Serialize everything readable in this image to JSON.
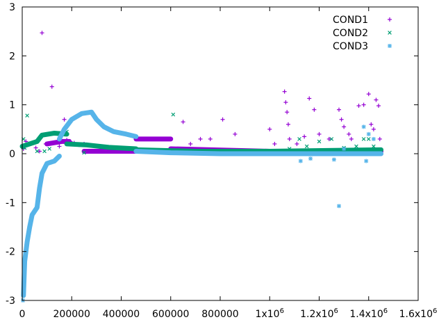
{
  "chart_data": {
    "type": "scatter",
    "title": "",
    "xlabel": "",
    "ylabel": "",
    "xlim": [
      0,
      1600000
    ],
    "ylim": [
      -3,
      3
    ],
    "x_ticks": [
      {
        "value": 0,
        "label": "0"
      },
      {
        "value": 200000,
        "label": "200000"
      },
      {
        "value": 400000,
        "label": "400000"
      },
      {
        "value": 600000,
        "label": "600000"
      },
      {
        "value": 800000,
        "label": "800000"
      },
      {
        "value": 1000000,
        "label": "1x10",
        "exp": "6"
      },
      {
        "value": 1200000,
        "label": "1.2x10",
        "exp": "6"
      },
      {
        "value": 1400000,
        "label": "1.4x10",
        "exp": "6"
      },
      {
        "value": 1600000,
        "label": "1.6x10",
        "exp": "6"
      }
    ],
    "y_ticks": [
      {
        "value": -3,
        "label": "-3"
      },
      {
        "value": -2,
        "label": "-2"
      },
      {
        "value": -1,
        "label": "-1"
      },
      {
        "value": 0,
        "label": "0"
      },
      {
        "value": 1,
        "label": "1"
      },
      {
        "value": 2,
        "label": "2"
      },
      {
        "value": 3,
        "label": "3"
      }
    ],
    "grid": false,
    "legend_position": "top-right",
    "series": [
      {
        "name": "COND1",
        "marker": "plus",
        "color": "#9400d3",
        "points": [
          [
            5000,
            0.1
          ],
          [
            15000,
            0.25
          ],
          [
            30000,
            0.2
          ],
          [
            55000,
            0.12
          ],
          [
            70000,
            0.05
          ],
          [
            80000,
            2.47
          ],
          [
            95000,
            0.2
          ],
          [
            120000,
            1.37
          ],
          [
            150000,
            0.15
          ],
          [
            170000,
            0.7
          ],
          [
            180000,
            0.28
          ],
          [
            195000,
            0.25
          ],
          [
            210000,
            0.22
          ],
          [
            230000,
            0.18
          ],
          [
            250000,
            0.2
          ],
          [
            650000,
            0.65
          ],
          [
            680000,
            0.2
          ],
          [
            720000,
            0.3
          ],
          [
            760000,
            0.3
          ],
          [
            810000,
            0.7
          ],
          [
            860000,
            0.4
          ],
          [
            1000000,
            0.5
          ],
          [
            1020000,
            0.2
          ],
          [
            1060000,
            1.27
          ],
          [
            1065000,
            1.05
          ],
          [
            1070000,
            0.85
          ],
          [
            1075000,
            0.6
          ],
          [
            1080000,
            0.3
          ],
          [
            1110000,
            0.2
          ],
          [
            1140000,
            0.35
          ],
          [
            1160000,
            1.13
          ],
          [
            1180000,
            0.9
          ],
          [
            1200000,
            0.4
          ],
          [
            1240000,
            0.3
          ],
          [
            1280000,
            0.9
          ],
          [
            1290000,
            0.7
          ],
          [
            1300000,
            0.55
          ],
          [
            1320000,
            0.4
          ],
          [
            1330000,
            0.3
          ],
          [
            1360000,
            0.98
          ],
          [
            1380000,
            1.0
          ],
          [
            1400000,
            1.22
          ],
          [
            1410000,
            0.6
          ],
          [
            1420000,
            0.5
          ],
          [
            1430000,
            1.1
          ],
          [
            1440000,
            0.98
          ],
          [
            1445000,
            0.3
          ]
        ],
        "segments": [
          [
            [
              100000,
              0.2
            ],
            [
              160000,
              0.25
            ],
            [
              190000,
              0.25
            ]
          ],
          [
            [
              250000,
              0.05
            ],
            [
              460000,
              0.05
            ]
          ],
          [
            [
              460000,
              0.3
            ],
            [
              600000,
              0.3
            ]
          ],
          [
            [
              600000,
              0.1
            ],
            [
              1000000,
              0.05
            ],
            [
              1450000,
              0.05
            ]
          ]
        ]
      },
      {
        "name": "COND2",
        "marker": "cross",
        "color": "#009e73",
        "points": [
          [
            5000,
            0.3
          ],
          [
            10000,
            0.12
          ],
          [
            20000,
            0.78
          ],
          [
            60000,
            0.05
          ],
          [
            90000,
            0.05
          ],
          [
            110000,
            0.1
          ],
          [
            180000,
            0.45
          ],
          [
            250000,
            0.02
          ],
          [
            610000,
            0.8
          ],
          [
            1080000,
            0.1
          ],
          [
            1120000,
            0.3
          ],
          [
            1150000,
            0.15
          ],
          [
            1200000,
            0.25
          ],
          [
            1250000,
            0.3
          ],
          [
            1300000,
            0.12
          ],
          [
            1350000,
            0.15
          ],
          [
            1380000,
            0.3
          ],
          [
            1400000,
            0.3
          ],
          [
            1420000,
            0.15
          ]
        ],
        "segments": [
          [
            [
              0,
              0.15
            ],
            [
              60000,
              0.25
            ],
            [
              80000,
              0.38
            ],
            [
              130000,
              0.42
            ],
            [
              180000,
              0.4
            ]
          ],
          [
            [
              180000,
              0.2
            ],
            [
              260000,
              0.18
            ],
            [
              350000,
              0.13
            ],
            [
              460000,
              0.1
            ]
          ],
          [
            [
              460000,
              0.08
            ],
            [
              700000,
              0.05
            ],
            [
              1000000,
              0.05
            ],
            [
              1450000,
              0.08
            ]
          ]
        ]
      },
      {
        "name": "COND3",
        "marker": "asterisk",
        "color": "#56b4e9",
        "points": [
          [
            3000,
            -3.0
          ],
          [
            8000,
            -2.55
          ],
          [
            1125000,
            -0.15
          ],
          [
            1165000,
            -0.1
          ],
          [
            1260000,
            -0.12
          ],
          [
            1280000,
            -1.07
          ],
          [
            1300000,
            0.1
          ],
          [
            1380000,
            0.55
          ],
          [
            1390000,
            -0.15
          ],
          [
            1400000,
            0.4
          ],
          [
            1420000,
            0.3
          ]
        ],
        "segments": [
          [
            [
              5000,
              -2.9
            ],
            [
              10000,
              -2.2
            ],
            [
              20000,
              -1.8
            ],
            [
              30000,
              -1.5
            ],
            [
              40000,
              -1.25
            ],
            [
              60000,
              -1.1
            ],
            [
              70000,
              -0.7
            ],
            [
              80000,
              -0.4
            ],
            [
              100000,
              -0.2
            ],
            [
              130000,
              -0.15
            ],
            [
              150000,
              -0.05
            ]
          ],
          [
            [
              150000,
              0.3
            ],
            [
              170000,
              0.5
            ],
            [
              200000,
              0.7
            ],
            [
              240000,
              0.82
            ],
            [
              280000,
              0.85
            ],
            [
              300000,
              0.7
            ],
            [
              330000,
              0.55
            ],
            [
              370000,
              0.45
            ],
            [
              420000,
              0.4
            ],
            [
              460000,
              0.35
            ]
          ],
          [
            [
              460000,
              0.05
            ],
            [
              600000,
              0.02
            ],
            [
              800000,
              0.0
            ],
            [
              1000000,
              0.0
            ],
            [
              1450000,
              0.0
            ]
          ]
        ]
      }
    ]
  }
}
